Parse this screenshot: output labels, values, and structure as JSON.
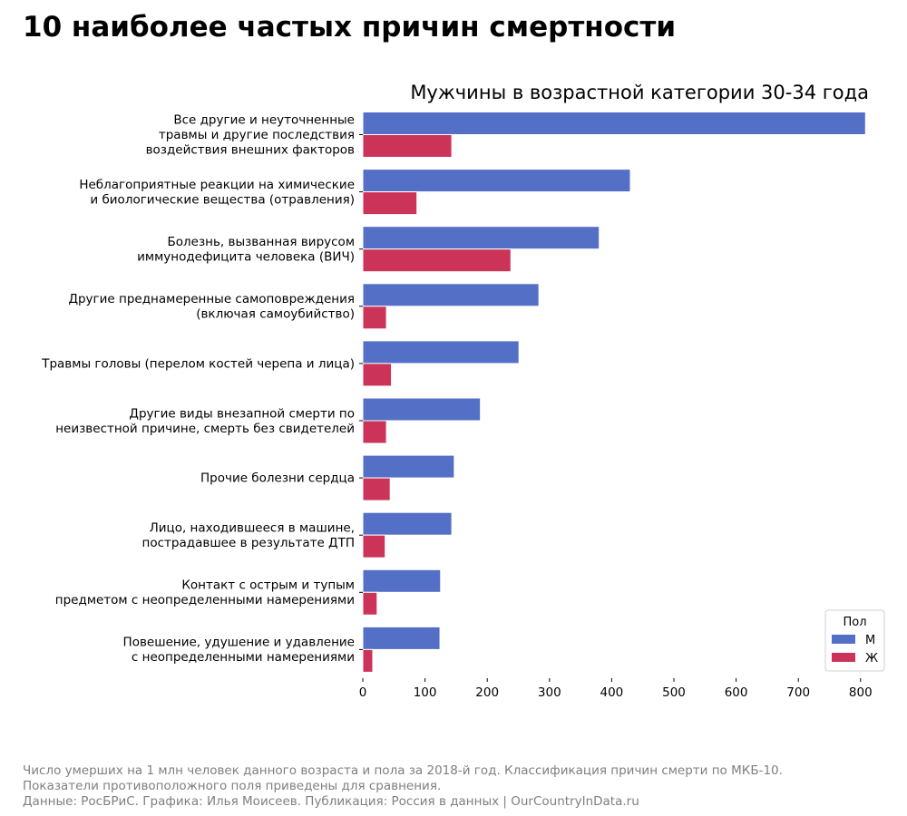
{
  "page": {
    "title": "10 наиболее частых причин смертности",
    "footer_lines": [
      "Число умерших на 1 млн человек данного возраста и пола за 2018-й год. Классификация причин смерти по МКБ-10.",
      "Показатели противоположного поля приведены для сравнения.",
      "Данные: РосБРиС. Графика: Илья Моисеев. Публикация: Россия в данных | OurCountryInData.ru"
    ]
  },
  "chart_data": {
    "type": "bar",
    "orientation": "horizontal",
    "title": "Мужчины в возрастной категории 30-34 года",
    "xlabel": "",
    "ylabel": "",
    "xlim": [
      0,
      815
    ],
    "xticks": [
      0,
      100,
      200,
      300,
      400,
      500,
      600,
      700,
      800
    ],
    "grid": false,
    "legend": {
      "title": "Пол",
      "position": "bottom-right"
    },
    "categories": [
      [
        "Все другие и неуточненные",
        "травмы и другие последствия",
        "воздействия внешних факторов"
      ],
      [
        "Неблагоприятные реакции на химические",
        "и биологические вещества (отравления)"
      ],
      [
        "Болезнь, вызванная вирусом",
        "иммунодефицита человека (ВИЧ)"
      ],
      [
        "Другие преднамеренные самоповреждения",
        "(включая самоубийство)"
      ],
      [
        "Травмы головы (перелом костей черепа и лица)"
      ],
      [
        "Другие виды внезапной смерти по",
        "неизвестной причине, смерть без свидетелей"
      ],
      [
        "Прочие болезни сердца"
      ],
      [
        "Лицо, находившееся в машине,",
        "пострадавшее в результате ДТП"
      ],
      [
        "Контакт с острым и тупым",
        "предметом с неопределенными намерениями"
      ],
      [
        "Повешение, удушение и удавление",
        "с неопределенными намерениями"
      ]
    ],
    "series": [
      {
        "name": "М",
        "color": "#5470c6",
        "values": [
          808,
          430,
          380,
          283,
          251,
          189,
          147,
          143,
          125,
          124
        ]
      },
      {
        "name": "Ж",
        "color": "#cc3358",
        "values": [
          143,
          87,
          238,
          38,
          46,
          38,
          44,
          36,
          23,
          16
        ]
      }
    ]
  }
}
